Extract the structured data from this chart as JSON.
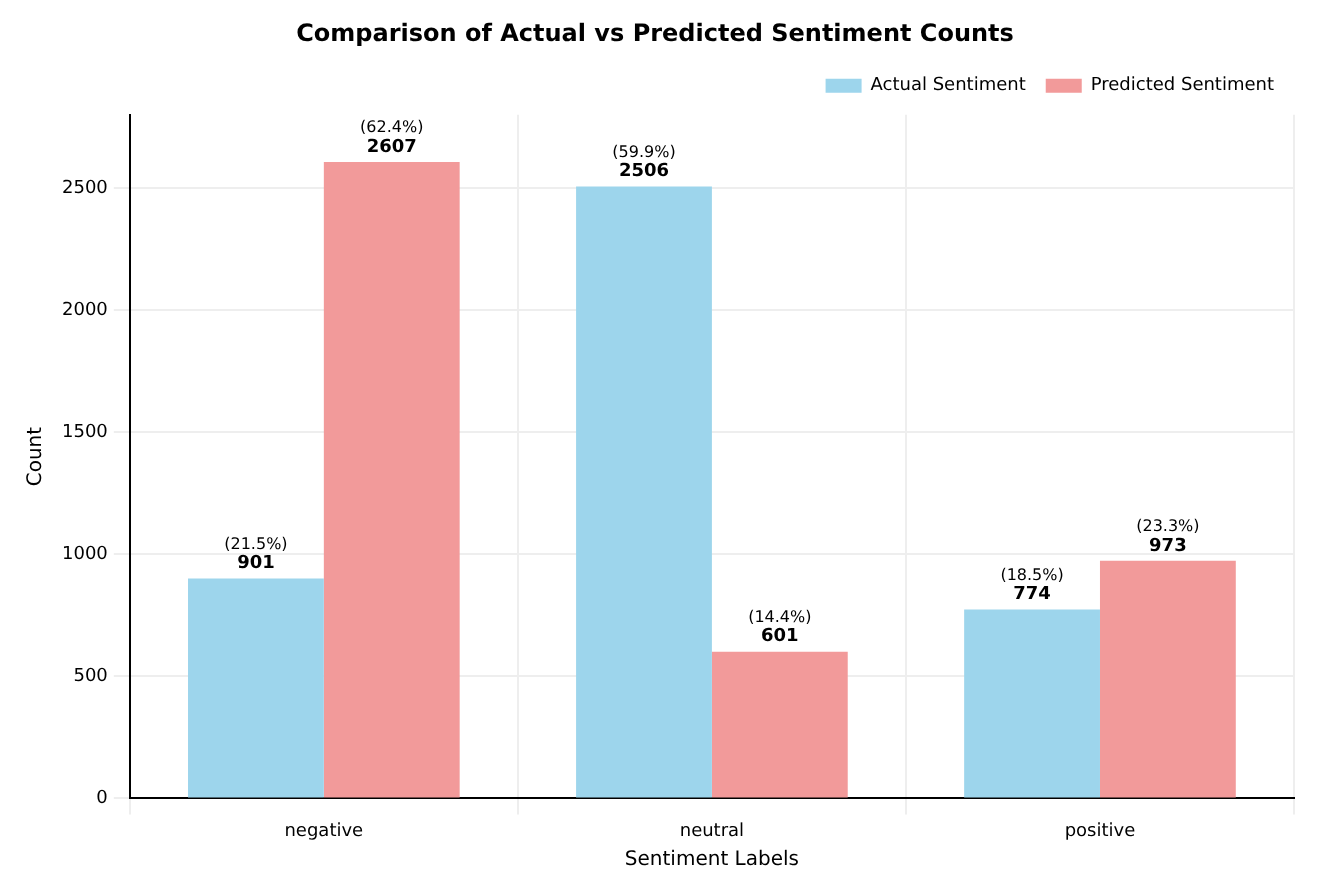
{
  "chart_data": {
    "type": "bar",
    "title": "Comparison of Actual vs Predicted Sentiment Counts",
    "xlabel": "Sentiment Labels",
    "ylabel": "Count",
    "categories": [
      "negative",
      "neutral",
      "positive"
    ],
    "series": [
      {
        "name": "Actual Sentiment",
        "color": "#9dd5ec",
        "values": [
          901,
          2506,
          774
        ],
        "value_labels": [
          "(21.5%)\n901",
          "(59.9%)\n2506",
          "(18.5%)\n774"
        ]
      },
      {
        "name": "Predicted Sentiment",
        "color": "#f29a9a",
        "values": [
          2607,
          601,
          973
        ],
        "value_labels": [
          "(62.4%)\n2607",
          "(14.4%)\n601",
          "(23.3%)\n973"
        ]
      }
    ],
    "ylim": [
      0,
      2800
    ],
    "yticks": [
      0,
      500,
      1000,
      1500,
      2000,
      2500
    ],
    "grid": true,
    "legend": "top right"
  }
}
